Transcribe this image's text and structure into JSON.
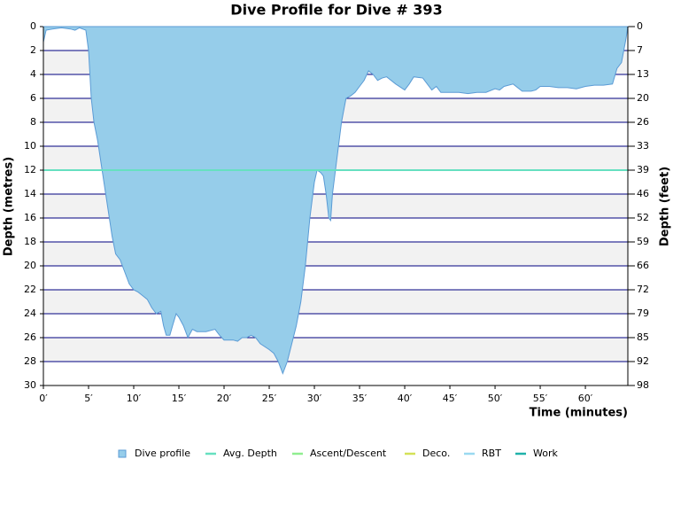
{
  "chart_data": {
    "type": "area",
    "title": "Dive Profile for Dive # 393",
    "x_label": "Time (minutes)",
    "y_label": "Depth (metres)",
    "y2_label": "Depth (feet)",
    "xlim": [
      0,
      64.7
    ],
    "ylim": [
      0,
      30
    ],
    "y2lim": [
      0,
      98.43
    ],
    "y_inverted": true,
    "grid": true,
    "band_color": "#f2f2f2",
    "grid_color": "#000080",
    "xticks": [
      {
        "value": 0,
        "label": "0′"
      },
      {
        "value": 5,
        "label": "5′"
      },
      {
        "value": 10,
        "label": "10′"
      },
      {
        "value": 15,
        "label": "15′"
      },
      {
        "value": 20,
        "label": "20′"
      },
      {
        "value": 25,
        "label": "25′"
      },
      {
        "value": 30,
        "label": "30′"
      },
      {
        "value": 35,
        "label": "35′"
      },
      {
        "value": 40,
        "label": "40′"
      },
      {
        "value": 45,
        "label": "45′"
      },
      {
        "value": 50,
        "label": "50′"
      },
      {
        "value": 55,
        "label": "55′"
      },
      {
        "value": 60,
        "label": "60′"
      }
    ],
    "yticks": [
      0,
      2,
      4,
      6,
      8,
      10,
      12,
      14,
      16,
      18,
      20,
      22,
      24,
      26,
      28,
      30
    ],
    "y2ticks": [
      0,
      {
        "value": 6.56,
        "label": "7"
      },
      {
        "value": 13.12,
        "label": "13"
      },
      {
        "value": 19.69,
        "label": "20"
      },
      {
        "value": 26.25,
        "label": "26"
      },
      {
        "value": 32.81,
        "label": "33"
      },
      {
        "value": 39.37,
        "label": "39"
      },
      {
        "value": 45.93,
        "label": "46"
      },
      {
        "value": 52.49,
        "label": "52"
      },
      {
        "value": 59.06,
        "label": "59"
      },
      {
        "value": 65.62,
        "label": "66"
      },
      {
        "value": 72.18,
        "label": "72"
      },
      {
        "value": 78.74,
        "label": "79"
      },
      {
        "value": 85.3,
        "label": "85"
      },
      {
        "value": 91.86,
        "label": "92"
      },
      {
        "value": 98.43,
        "label": "98"
      }
    ],
    "series": [
      {
        "name": "Dive profile",
        "color": "#96cdea",
        "stroke": "#5b9bd5",
        "x": [
          0,
          0.3,
          1,
          2,
          3,
          3.5,
          4,
          4.7,
          5,
          5.3,
          5.6,
          6,
          6.5,
          7,
          7.3,
          7.6,
          8,
          8.5,
          9,
          9.5,
          10,
          10.5,
          11,
          11.5,
          12,
          12.5,
          13,
          13.3,
          13.6,
          14,
          14.3,
          14.7,
          15,
          15.5,
          16,
          16.5,
          17,
          18,
          19,
          19.5,
          20,
          21,
          21.5,
          22,
          22.5,
          23,
          23.5,
          24,
          25,
          25.5,
          26,
          26.5,
          27,
          27.5,
          28,
          28.5,
          29,
          29.5,
          30,
          30.3,
          30.7,
          31,
          31.3,
          31.6,
          31.8,
          32,
          32.5,
          33,
          33.5,
          34,
          34.5,
          35,
          35.5,
          36,
          36.5,
          37,
          37.5,
          38,
          39,
          40,
          40.5,
          41,
          42,
          42.5,
          43,
          43.5,
          44,
          45,
          46,
          47,
          48,
          49,
          50,
          50.5,
          51,
          52,
          53,
          54,
          54.5,
          55,
          56,
          57,
          58,
          59,
          60,
          61,
          62,
          63,
          63.5,
          64,
          64.5,
          64.7
        ],
        "values": [
          1.3,
          0.3,
          0.2,
          0.1,
          0.2,
          0.3,
          0.1,
          0.3,
          2,
          6,
          8,
          9.5,
          12,
          14.5,
          16,
          17.5,
          19,
          19.5,
          20.5,
          21.5,
          22,
          22.2,
          22.5,
          22.8,
          23.5,
          24,
          23.8,
          25,
          25.8,
          25.8,
          25,
          24,
          24.3,
          25,
          26,
          25.3,
          25.5,
          25.5,
          25.3,
          25.8,
          26.2,
          26.2,
          26.3,
          26,
          26,
          25.8,
          26,
          26.5,
          27,
          27.3,
          28,
          29,
          28,
          26.5,
          25,
          23,
          20,
          16,
          13,
          12,
          12.2,
          12.5,
          14,
          16,
          16.2,
          14,
          11,
          8,
          6,
          5.8,
          5.5,
          5,
          4.5,
          3.7,
          4,
          4.5,
          4.3,
          4.2,
          4.8,
          5.3,
          4.8,
          4.2,
          4.3,
          4.8,
          5.3,
          5,
          5.5,
          5.5,
          5.5,
          5.6,
          5.5,
          5.5,
          5.2,
          5.3,
          5,
          4.8,
          5.4,
          5.4,
          5.3,
          5,
          5,
          5.1,
          5.1,
          5.2,
          5,
          4.9,
          4.9,
          4.8,
          3.5,
          3,
          1,
          0
        ]
      },
      {
        "name": "Avg. Depth",
        "color": "#66e0c0",
        "x": [
          0,
          64.7
        ],
        "values": [
          12,
          12
        ]
      },
      {
        "name": "Ascent/Descent",
        "color": "#90ee90",
        "x": [],
        "values": []
      },
      {
        "name": "Deco.",
        "color": "#d4e157",
        "x": [],
        "values": []
      },
      {
        "name": "RBT",
        "color": "#9ad9f0",
        "x": [],
        "values": []
      },
      {
        "name": "Work",
        "color": "#20b2aa",
        "x": [],
        "values": []
      }
    ]
  }
}
